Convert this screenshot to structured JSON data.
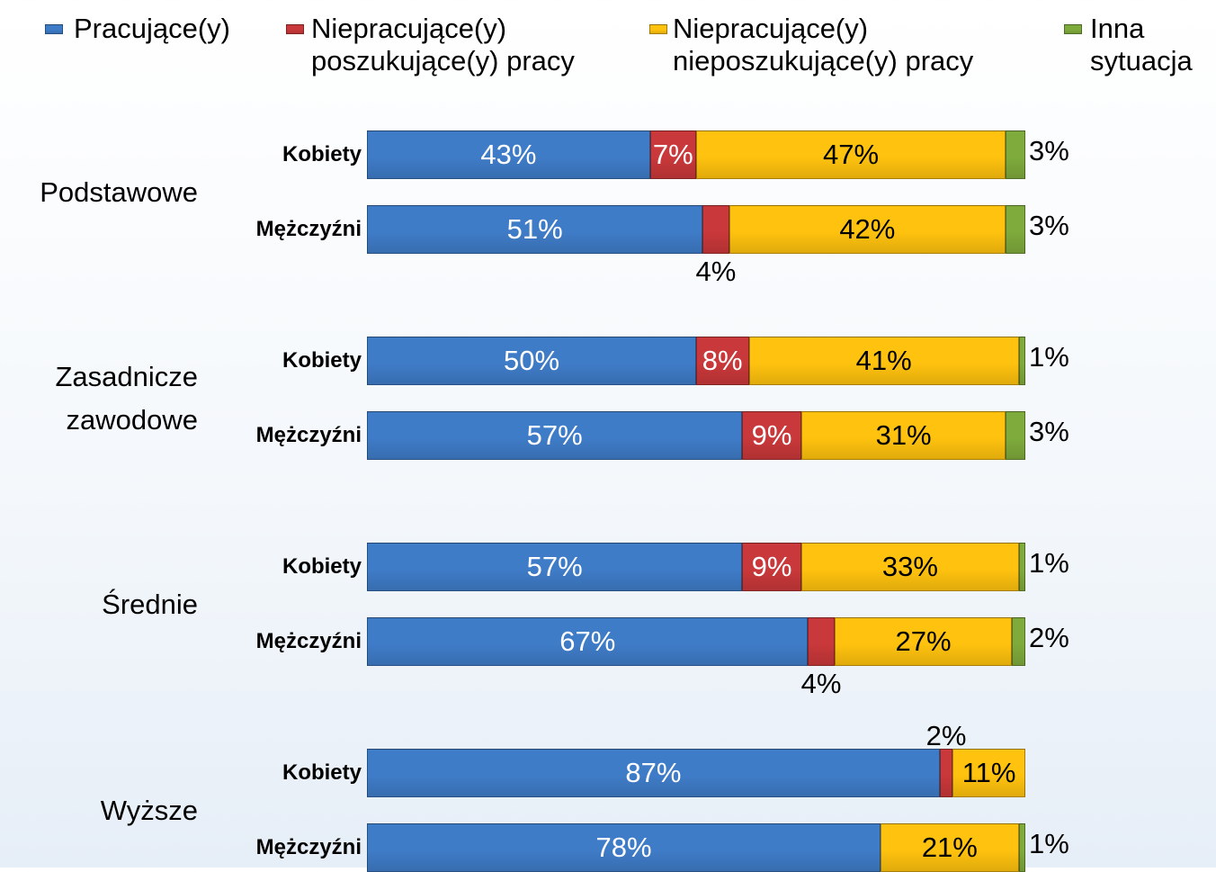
{
  "chart_data": {
    "type": "stacked-bar-horizontal",
    "groups": [
      "Podstawowe",
      "Zasadnicze zawodowe",
      "Średnie",
      "Wyższe"
    ],
    "categories": [
      "Kobiety",
      "Mężczyźni",
      "Kobiety",
      "Mężczyźni",
      "Kobiety",
      "Mężczyźni",
      "Kobiety",
      "Mężczyźni"
    ],
    "xlim": [
      0,
      100
    ],
    "series": [
      {
        "name": "Pracujące(y)",
        "color": "#3f7cc8",
        "values": [
          43,
          51,
          50,
          57,
          57,
          67,
          87,
          78
        ],
        "value_labels": [
          "43%",
          "51%",
          "50%",
          "57%",
          "57%",
          "67%",
          "87%",
          "78%"
        ]
      },
      {
        "name": "Niepracujące(y) poszukujące(y) pracy",
        "color": "#c9383a",
        "values": [
          7,
          4,
          8,
          9,
          9,
          4,
          2,
          null
        ],
        "value_labels": [
          "7%",
          "4%",
          "8%",
          "9%",
          "9%",
          "4%",
          "2%",
          null
        ]
      },
      {
        "name": "Niepracujące(y) nieposzukujące(y) pracy",
        "color": "#ffc20e",
        "values": [
          47,
          42,
          41,
          31,
          33,
          27,
          11,
          21
        ],
        "value_labels": [
          "47%",
          "42%",
          "41%",
          "31%",
          "33%",
          "27%",
          "11%",
          "21%"
        ]
      },
      {
        "name": "Inna sytuacja",
        "color": "#7fab3c",
        "values": [
          3,
          3,
          1,
          3,
          1,
          2,
          null,
          1
        ],
        "value_labels": [
          "3%",
          "3%",
          "1%",
          "3%",
          "1%",
          "2%",
          null,
          "1%"
        ]
      }
    ],
    "legend": "top"
  }
}
